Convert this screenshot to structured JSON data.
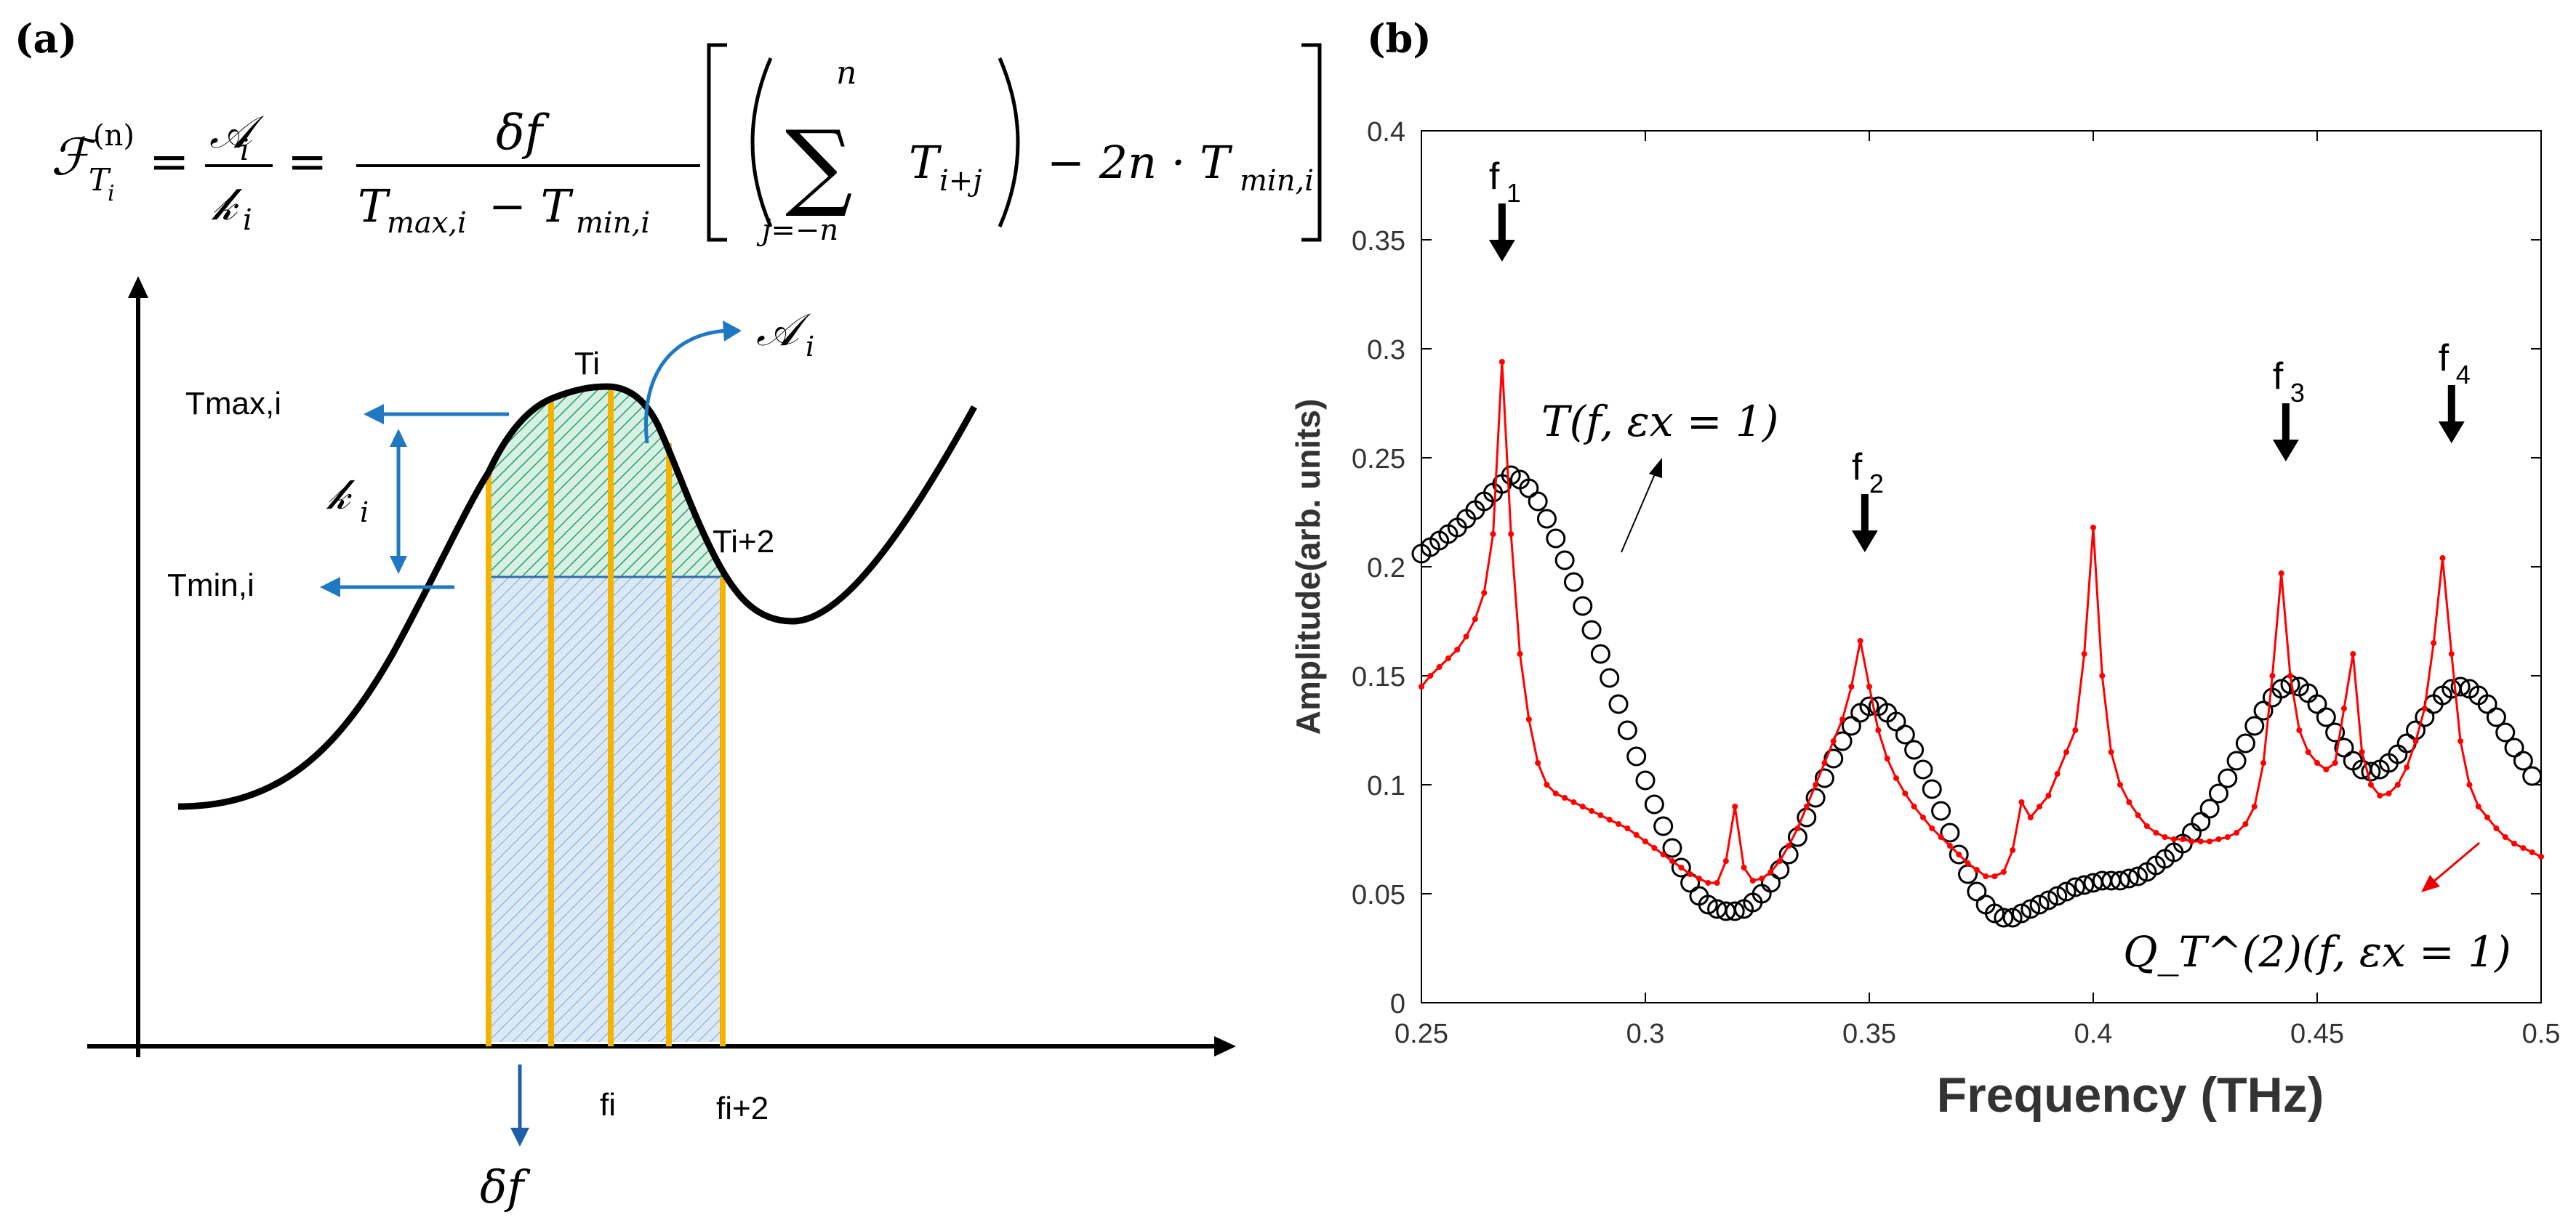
{
  "panel_a": {
    "label": "(a)",
    "formula": {
      "lhs": "ℱ",
      "lhs_sub": "T",
      "lhs_sub2": "i",
      "lhs_sup": "(n)",
      "eq": "=",
      "frac1_num": "𝒜",
      "frac1_num_sub": "i",
      "frac1_den": "𝓀",
      "frac1_den_sub": "i",
      "frac2_num": "δf",
      "frac2_den": "T",
      "frac2_den_sub1": "max,i",
      "frac2_den_mid": " − T",
      "frac2_den_sub2": "min,i",
      "sum_top": "n",
      "sum_bottom": "j=−n",
      "sum_symbol": "∑",
      "sum_term": "T",
      "sum_term_sub": "i+j",
      "tail": "− 2n · T",
      "tail_sub": "min,i"
    },
    "labels": {
      "Ti": "Ti",
      "Tmax": "Tmax,i",
      "Tmin": "Tmin,i",
      "Ti2": "Ti+2",
      "hi": "𝓀",
      "hi_sub": "i",
      "Ai": "𝒜",
      "Ai_sub": "i",
      "fi": "fi",
      "fi2": "fi+2",
      "df": "δf"
    }
  },
  "chart_data": {
    "type": "line",
    "panel_label": "(b)",
    "xlabel": "Frequency (THz)",
    "ylabel": "Amplitude(arb. units)",
    "xlim": [
      0.25,
      0.5
    ],
    "ylim": [
      0,
      0.4
    ],
    "xticks": [
      "0.25",
      "0.3",
      "0.35",
      "0.4",
      "0.45",
      "0.5"
    ],
    "yticks": [
      "0",
      "0.05",
      "0.1",
      "0.15",
      "0.2",
      "0.25",
      "0.3",
      "0.35",
      "0.4"
    ],
    "annotations": {
      "T_label": "T(f, εx = 1)",
      "Q_label": "Q_T^(2)(f, εx = 1)",
      "markers": [
        {
          "name": "f1",
          "base": "f",
          "sub": "1",
          "x": 0.268
        },
        {
          "name": "f2",
          "base": "f",
          "sub": "2",
          "x": 0.349
        },
        {
          "name": "f3",
          "base": "f",
          "sub": "3",
          "x": 0.443
        },
        {
          "name": "f4",
          "base": "f",
          "sub": "4",
          "x": 0.48
        }
      ]
    },
    "series": [
      {
        "name": "T(f, εx = 1)",
        "style": "circles",
        "color": "#000000",
        "x": [
          0.25,
          0.252,
          0.254,
          0.256,
          0.258,
          0.26,
          0.262,
          0.264,
          0.266,
          0.268,
          0.27,
          0.272,
          0.274,
          0.276,
          0.278,
          0.28,
          0.282,
          0.284,
          0.286,
          0.288,
          0.29,
          0.292,
          0.294,
          0.296,
          0.298,
          0.3,
          0.302,
          0.304,
          0.306,
          0.308,
          0.31,
          0.312,
          0.314,
          0.316,
          0.318,
          0.32,
          0.322,
          0.324,
          0.326,
          0.328,
          0.33,
          0.332,
          0.334,
          0.336,
          0.338,
          0.34,
          0.342,
          0.344,
          0.346,
          0.348,
          0.35,
          0.352,
          0.354,
          0.356,
          0.358,
          0.36,
          0.362,
          0.364,
          0.366,
          0.368,
          0.37,
          0.372,
          0.374,
          0.376,
          0.378,
          0.38,
          0.382,
          0.384,
          0.386,
          0.388,
          0.39,
          0.392,
          0.394,
          0.396,
          0.398,
          0.4,
          0.402,
          0.404,
          0.406,
          0.408,
          0.41,
          0.412,
          0.414,
          0.416,
          0.418,
          0.42,
          0.422,
          0.424,
          0.426,
          0.428,
          0.43,
          0.432,
          0.434,
          0.436,
          0.438,
          0.44,
          0.442,
          0.444,
          0.446,
          0.448,
          0.45,
          0.452,
          0.454,
          0.456,
          0.458,
          0.46,
          0.462,
          0.464,
          0.466,
          0.468,
          0.47,
          0.472,
          0.474,
          0.476,
          0.478,
          0.48,
          0.482,
          0.484,
          0.486,
          0.488,
          0.49,
          0.492,
          0.494,
          0.496,
          0.498
        ],
        "y": [
          0.206,
          0.209,
          0.212,
          0.215,
          0.218,
          0.222,
          0.226,
          0.23,
          0.234,
          0.238,
          0.242,
          0.24,
          0.236,
          0.23,
          0.222,
          0.213,
          0.203,
          0.193,
          0.182,
          0.171,
          0.16,
          0.149,
          0.137,
          0.125,
          0.113,
          0.102,
          0.091,
          0.081,
          0.071,
          0.062,
          0.055,
          0.049,
          0.045,
          0.043,
          0.042,
          0.042,
          0.043,
          0.046,
          0.05,
          0.055,
          0.061,
          0.068,
          0.076,
          0.085,
          0.094,
          0.103,
          0.112,
          0.12,
          0.127,
          0.133,
          0.136,
          0.136,
          0.133,
          0.129,
          0.123,
          0.116,
          0.107,
          0.098,
          0.088,
          0.078,
          0.068,
          0.059,
          0.051,
          0.045,
          0.041,
          0.039,
          0.039,
          0.041,
          0.043,
          0.045,
          0.047,
          0.049,
          0.051,
          0.053,
          0.054,
          0.055,
          0.056,
          0.056,
          0.056,
          0.057,
          0.058,
          0.06,
          0.063,
          0.066,
          0.069,
          0.073,
          0.078,
          0.083,
          0.089,
          0.096,
          0.103,
          0.111,
          0.119,
          0.127,
          0.134,
          0.14,
          0.144,
          0.146,
          0.145,
          0.142,
          0.137,
          0.131,
          0.124,
          0.117,
          0.111,
          0.107,
          0.106,
          0.107,
          0.11,
          0.114,
          0.119,
          0.125,
          0.131,
          0.137,
          0.141,
          0.144,
          0.145,
          0.144,
          0.141,
          0.137,
          0.131,
          0.124,
          0.117,
          0.111,
          0.104
        ]
      },
      {
        "name": "Q_T^(2)(f, εx = 1)",
        "style": "line-dots",
        "color": "#ff0000",
        "x": [
          0.25,
          0.252,
          0.254,
          0.256,
          0.258,
          0.26,
          0.262,
          0.264,
          0.266,
          0.268,
          0.27,
          0.272,
          0.274,
          0.276,
          0.278,
          0.28,
          0.282,
          0.284,
          0.286,
          0.288,
          0.29,
          0.292,
          0.294,
          0.296,
          0.298,
          0.3,
          0.302,
          0.304,
          0.306,
          0.308,
          0.31,
          0.312,
          0.314,
          0.316,
          0.318,
          0.32,
          0.322,
          0.324,
          0.326,
          0.328,
          0.33,
          0.332,
          0.334,
          0.336,
          0.338,
          0.34,
          0.342,
          0.344,
          0.346,
          0.348,
          0.35,
          0.352,
          0.354,
          0.356,
          0.358,
          0.36,
          0.362,
          0.364,
          0.366,
          0.368,
          0.37,
          0.372,
          0.374,
          0.376,
          0.378,
          0.38,
          0.382,
          0.384,
          0.386,
          0.388,
          0.39,
          0.392,
          0.394,
          0.396,
          0.398,
          0.4,
          0.402,
          0.404,
          0.406,
          0.408,
          0.41,
          0.412,
          0.414,
          0.416,
          0.418,
          0.42,
          0.422,
          0.424,
          0.426,
          0.428,
          0.43,
          0.432,
          0.434,
          0.436,
          0.438,
          0.44,
          0.442,
          0.444,
          0.446,
          0.448,
          0.45,
          0.452,
          0.454,
          0.456,
          0.458,
          0.46,
          0.462,
          0.464,
          0.466,
          0.468,
          0.47,
          0.472,
          0.474,
          0.476,
          0.478,
          0.48,
          0.482,
          0.484,
          0.486,
          0.488,
          0.49,
          0.492,
          0.494,
          0.496,
          0.498,
          0.5
        ],
        "y": [
          0.145,
          0.15,
          0.154,
          0.158,
          0.162,
          0.168,
          0.176,
          0.188,
          0.215,
          0.294,
          0.215,
          0.16,
          0.13,
          0.11,
          0.1,
          0.096,
          0.094,
          0.092,
          0.09,
          0.088,
          0.086,
          0.084,
          0.082,
          0.08,
          0.077,
          0.074,
          0.071,
          0.068,
          0.065,
          0.062,
          0.059,
          0.057,
          0.055,
          0.055,
          0.065,
          0.09,
          0.062,
          0.056,
          0.057,
          0.06,
          0.065,
          0.072,
          0.08,
          0.09,
          0.1,
          0.11,
          0.12,
          0.13,
          0.145,
          0.166,
          0.145,
          0.125,
          0.112,
          0.103,
          0.096,
          0.09,
          0.085,
          0.08,
          0.076,
          0.072,
          0.068,
          0.064,
          0.061,
          0.058,
          0.058,
          0.06,
          0.07,
          0.092,
          0.085,
          0.09,
          0.095,
          0.105,
          0.115,
          0.125,
          0.16,
          0.218,
          0.15,
          0.115,
          0.1,
          0.092,
          0.086,
          0.081,
          0.078,
          0.076,
          0.075,
          0.075,
          0.074,
          0.074,
          0.074,
          0.075,
          0.076,
          0.078,
          0.082,
          0.09,
          0.11,
          0.15,
          0.197,
          0.15,
          0.125,
          0.115,
          0.11,
          0.107,
          0.11,
          0.135,
          0.16,
          0.115,
          0.1,
          0.095,
          0.096,
          0.1,
          0.108,
          0.12,
          0.135,
          0.165,
          0.204,
          0.16,
          0.12,
          0.1,
          0.09,
          0.085,
          0.08,
          0.076,
          0.073,
          0.071,
          0.069,
          0.067
        ]
      }
    ]
  }
}
